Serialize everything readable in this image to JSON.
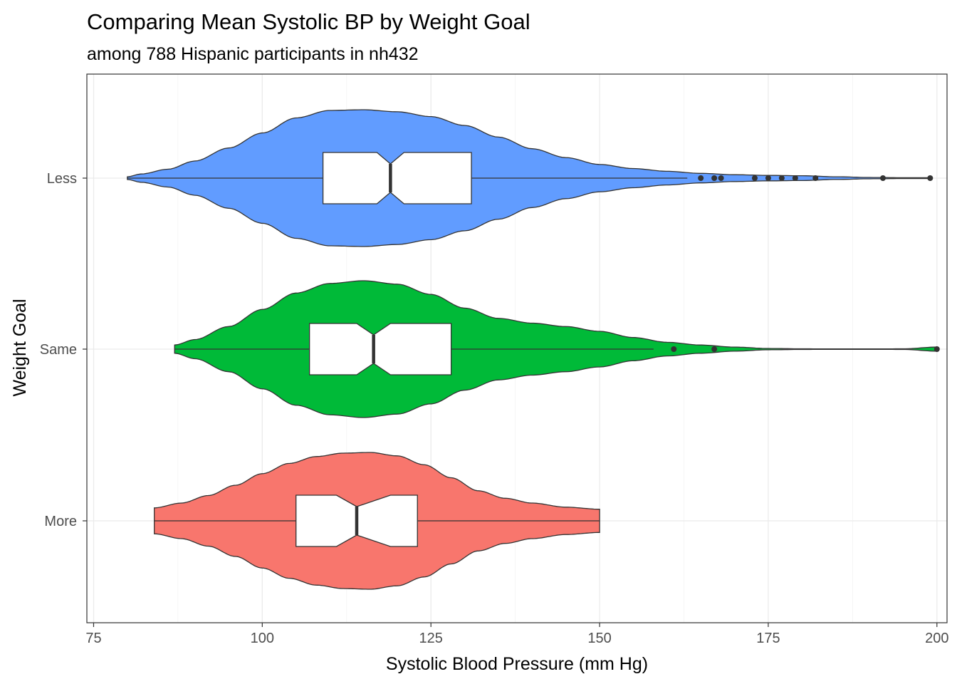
{
  "chart_data": {
    "type": "violin",
    "title": "Comparing Mean Systolic BP by Weight Goal",
    "subtitle": "among 788 Hispanic participants in nh432",
    "xlabel": "Systolic Blood Pressure (mm Hg)",
    "ylabel": "Weight Goal",
    "xlim": [
      74,
      201.5
    ],
    "x_ticks": [
      "75",
      "100",
      "125",
      "150",
      "175",
      "200"
    ],
    "x_tick_values": [
      75,
      100,
      125,
      150,
      175,
      200
    ],
    "orientation": "horizontal",
    "grid": true,
    "box_fill": "#ffffff",
    "outline_color": "#333333",
    "categories": [
      "Less",
      "Same",
      "More"
    ],
    "series": [
      {
        "category": "Less",
        "color": "#619CFF",
        "violin_min": 80,
        "violin_max": 199,
        "density_profile": [
          [
            80,
            0.02
          ],
          [
            82,
            0.06
          ],
          [
            86,
            0.13
          ],
          [
            90,
            0.25
          ],
          [
            95,
            0.44
          ],
          [
            100,
            0.66
          ],
          [
            105,
            0.88
          ],
          [
            110,
            0.99
          ],
          [
            115,
            1.0
          ],
          [
            120,
            0.97
          ],
          [
            125,
            0.9
          ],
          [
            130,
            0.77
          ],
          [
            135,
            0.6
          ],
          [
            140,
            0.43
          ],
          [
            145,
            0.3
          ],
          [
            150,
            0.2
          ],
          [
            155,
            0.14
          ],
          [
            160,
            0.1
          ],
          [
            165,
            0.07
          ],
          [
            170,
            0.05
          ],
          [
            175,
            0.04
          ],
          [
            180,
            0.035
          ],
          [
            185,
            0.02
          ],
          [
            190,
            0.01
          ],
          [
            195,
            0.006
          ],
          [
            199,
            0.006
          ]
        ],
        "box": {
          "q1": 109,
          "median": 119,
          "q3": 131,
          "whisker_low": 80,
          "whisker_high": 163,
          "notch_low": 117,
          "notch_high": 121
        },
        "outliers": [
          165,
          167,
          168,
          173,
          175,
          177,
          179,
          182,
          192,
          199
        ]
      },
      {
        "category": "Same",
        "color": "#00BA38",
        "violin_min": 87,
        "violin_max": 200,
        "density_profile": [
          [
            87,
            0.06
          ],
          [
            90,
            0.14
          ],
          [
            95,
            0.33
          ],
          [
            100,
            0.58
          ],
          [
            105,
            0.82
          ],
          [
            110,
            0.96
          ],
          [
            115,
            1.0
          ],
          [
            120,
            0.95
          ],
          [
            125,
            0.8
          ],
          [
            130,
            0.6
          ],
          [
            135,
            0.45
          ],
          [
            140,
            0.38
          ],
          [
            145,
            0.33
          ],
          [
            150,
            0.26
          ],
          [
            155,
            0.17
          ],
          [
            160,
            0.1
          ],
          [
            165,
            0.06
          ],
          [
            170,
            0.03
          ],
          [
            175,
            0.01
          ],
          [
            180,
            0.005
          ],
          [
            185,
            0.003
          ],
          [
            190,
            0.003
          ],
          [
            195,
            0.005
          ],
          [
            200,
            0.03
          ]
        ],
        "box": {
          "q1": 107,
          "median": 116.5,
          "q3": 128,
          "whisker_low": 87,
          "whisker_high": 158,
          "notch_low": 114,
          "notch_high": 119
        },
        "outliers": [
          161,
          167,
          200
        ]
      },
      {
        "category": "More",
        "color": "#F8766D",
        "violin_min": 84,
        "violin_max": 150,
        "density_profile": [
          [
            84,
            0.19
          ],
          [
            88,
            0.26
          ],
          [
            92,
            0.37
          ],
          [
            96,
            0.52
          ],
          [
            100,
            0.69
          ],
          [
            104,
            0.84
          ],
          [
            108,
            0.94
          ],
          [
            112,
            0.99
          ],
          [
            116,
            1.0
          ],
          [
            120,
            0.95
          ],
          [
            124,
            0.82
          ],
          [
            128,
            0.63
          ],
          [
            132,
            0.44
          ],
          [
            136,
            0.33
          ],
          [
            140,
            0.26
          ],
          [
            145,
            0.2
          ],
          [
            150,
            0.17
          ]
        ],
        "box": {
          "q1": 105,
          "median": 114,
          "q3": 123,
          "whisker_low": 84,
          "whisker_high": 150,
          "notch_low": 111,
          "notch_high": 119
        },
        "outliers": []
      }
    ]
  }
}
